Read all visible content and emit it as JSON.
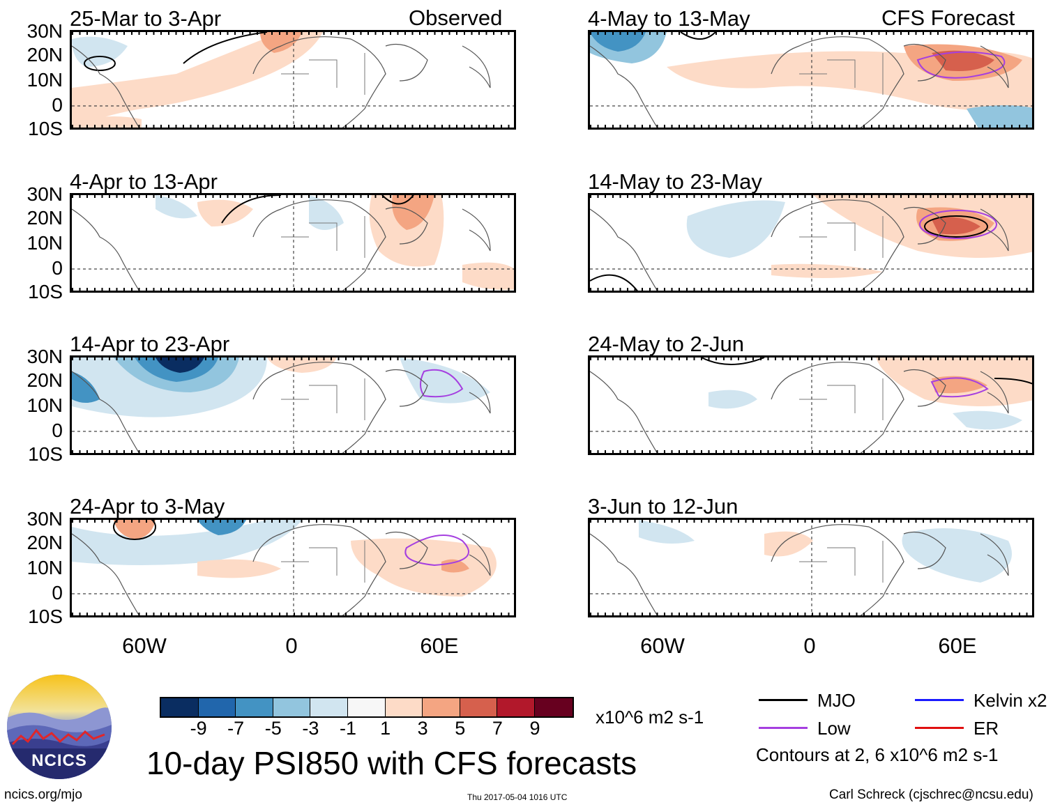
{
  "panels": [
    {
      "column": "left",
      "row": 0,
      "period": "25-Mar to 3-Apr"
    },
    {
      "column": "left",
      "row": 1,
      "period": "4-Apr to 13-Apr"
    },
    {
      "column": "left",
      "row": 2,
      "period": "14-Apr to 23-Apr"
    },
    {
      "column": "left",
      "row": 3,
      "period": "24-Apr to 3-May"
    },
    {
      "column": "right",
      "row": 0,
      "period": "4-May to 13-May"
    },
    {
      "column": "right",
      "row": 1,
      "period": "14-May to 23-May"
    },
    {
      "column": "right",
      "row": 2,
      "period": "24-May to 2-Jun"
    },
    {
      "column": "right",
      "row": 3,
      "period": "3-Jun to 12-Jun"
    }
  ],
  "column_labels": {
    "left": "Observed",
    "right": "CFS Forecast"
  },
  "latitude_labels": [
    "30N",
    "20N",
    "10N",
    "0",
    "10S"
  ],
  "longitude_labels": [
    "60W",
    "0",
    "60E"
  ],
  "colorbar": {
    "colors": [
      "#0a2d61",
      "#2166ac",
      "#4393c3",
      "#92c5de",
      "#d1e5f0",
      "#f7f7f7",
      "#fddbc7",
      "#f4a582",
      "#d6604d",
      "#b2182b",
      "#67001f"
    ],
    "tick_labels": [
      "-9",
      "-7",
      "-5",
      "-3",
      "-1",
      "1",
      "3",
      "5",
      "7",
      "9"
    ],
    "units": "x10^6 m2 s-1"
  },
  "title": "10-day PSI850 with CFS forecasts",
  "legend": {
    "items": [
      {
        "label": "MJO",
        "color": "#000000"
      },
      {
        "label": "Kelvin x2",
        "color": "#1a1aff"
      },
      {
        "label": "Low",
        "color": "#a53fe0"
      },
      {
        "label": "ER",
        "color": "#e01010"
      }
    ],
    "note": "Contours at 2, 6 x10^6 m2 s-1"
  },
  "logo": {
    "text": "NCICS"
  },
  "footer": {
    "url": "ncics.org/mjo",
    "timestamp": "Thu 2017-05-04 1016 UTC",
    "credit": "Carl Schreck (cjschrec@ncsu.edu)"
  }
}
